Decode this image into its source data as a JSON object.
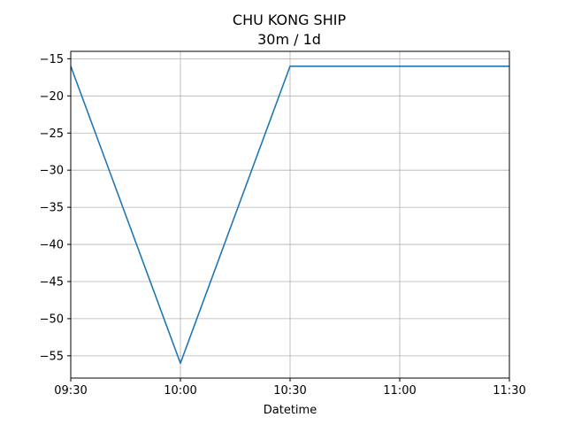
{
  "chart_data": {
    "type": "line",
    "title": "CHU KONG SHIP",
    "subtitle": "30m / 1d",
    "xlabel": "Datetime",
    "ylabel": "",
    "x": [
      "09:30",
      "10:00",
      "10:30",
      "11:00",
      "11:30"
    ],
    "series": [
      {
        "values": [
          -16,
          -56,
          -16,
          -16,
          -16
        ]
      }
    ],
    "xlim": [
      "09:30",
      "11:30"
    ],
    "ylim": [
      -58,
      -14
    ],
    "yticks": [
      -15,
      -20,
      -25,
      -30,
      -35,
      -40,
      -45,
      -50,
      -55
    ],
    "xticks": [
      "09:30",
      "10:00",
      "10:30",
      "11:00",
      "11:30"
    ],
    "grid": true,
    "line_color": "#1f77b4"
  }
}
